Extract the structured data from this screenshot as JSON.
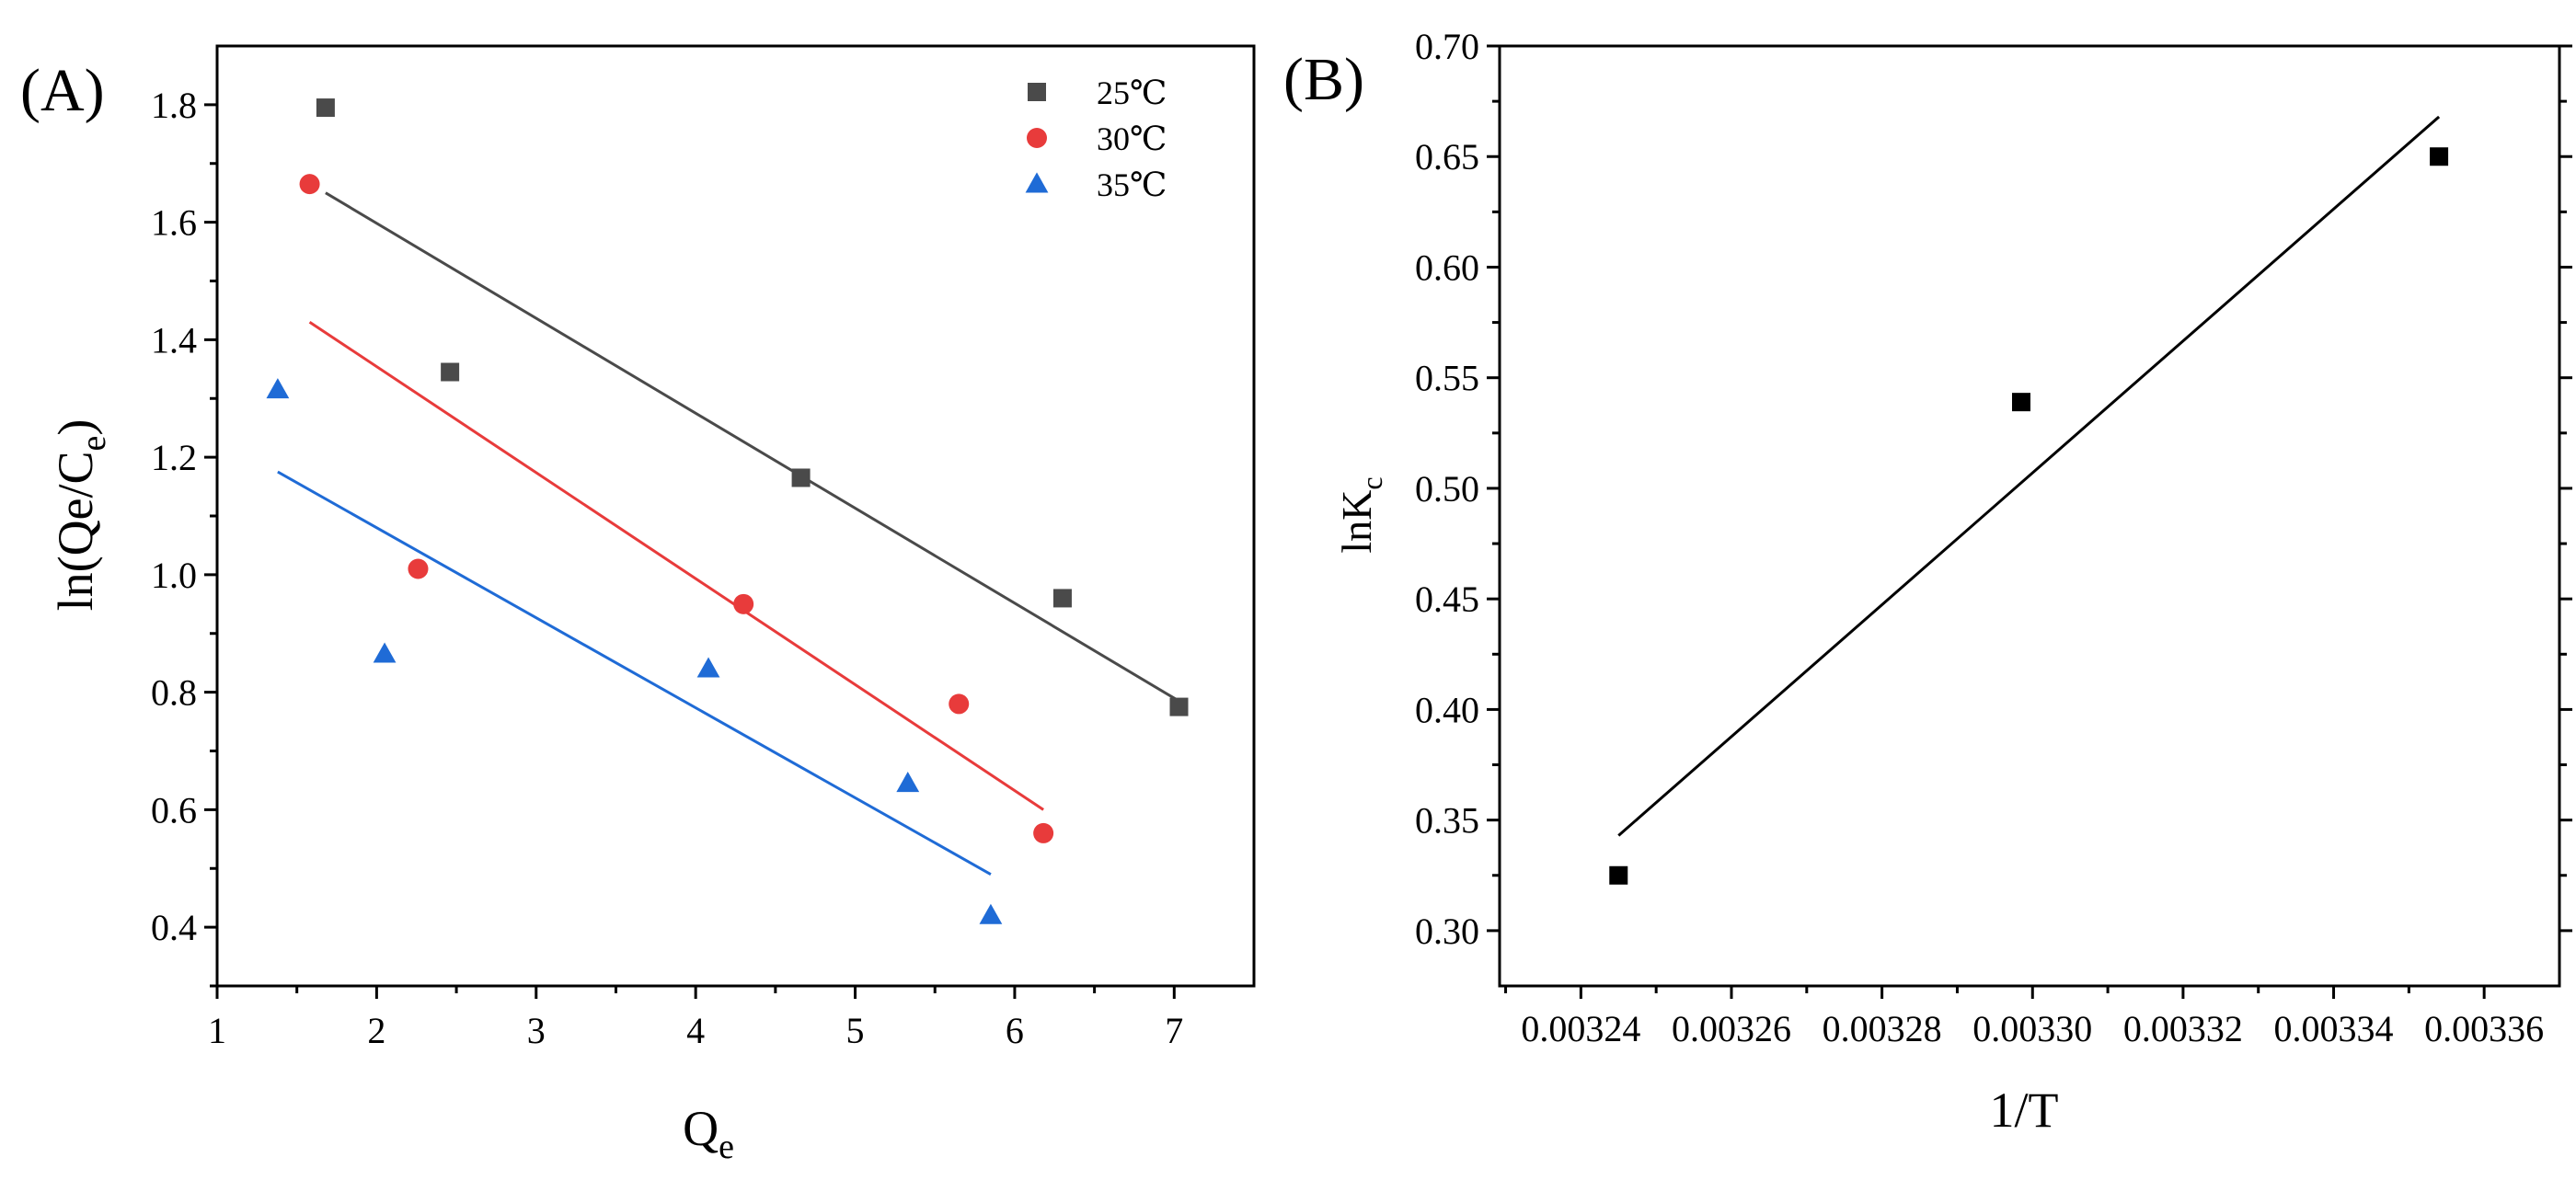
{
  "chart_data": [
    {
      "type": "scatter",
      "panel_label": "(A)",
      "title": "",
      "xlabel": "Q",
      "xlabel_sub": "e",
      "ylabel": "ln(Qe/C",
      "ylabel_sub": "e",
      "ylabel_close": ")",
      "xlim": [
        1,
        7.5
      ],
      "ylim": [
        0.3,
        1.9
      ],
      "x_ticks": [
        1,
        2,
        3,
        4,
        5,
        6,
        7
      ],
      "x_tick_labels": [
        "1",
        "2",
        "3",
        "4",
        "5",
        "6",
        "7"
      ],
      "y_ticks": [
        0.4,
        0.6,
        0.8,
        1.0,
        1.2,
        1.4,
        1.6,
        1.8
      ],
      "y_tick_labels": [
        "0.4",
        "0.6",
        "0.8",
        "1.0",
        "1.2",
        "1.4",
        "1.6",
        "1.8"
      ],
      "legend_position": "top-right",
      "series": [
        {
          "name": "25℃",
          "marker": "square",
          "color": "#4a4a4a",
          "line_color": "#4a4a4a",
          "x": [
            1.68,
            2.46,
            4.66,
            6.3,
            7.03
          ],
          "y": [
            1.795,
            1.345,
            1.165,
            0.96,
            0.775
          ],
          "fit": {
            "x": [
              1.68,
              7.03
            ],
            "y": [
              1.65,
              0.785
            ]
          }
        },
        {
          "name": "30℃",
          "marker": "circle",
          "color": "#e83b3b",
          "line_color": "#e83b3b",
          "x": [
            1.58,
            2.26,
            4.3,
            5.65,
            6.18
          ],
          "y": [
            1.665,
            1.01,
            0.95,
            0.78,
            0.56
          ],
          "fit": {
            "x": [
              1.58,
              6.18
            ],
            "y": [
              1.43,
              0.6
            ]
          }
        },
        {
          "name": "35℃",
          "marker": "triangle",
          "color": "#1f6bd6",
          "line_color": "#1f6bd6",
          "x": [
            1.38,
            2.05,
            4.08,
            5.33,
            5.85
          ],
          "y": [
            1.315,
            0.865,
            0.84,
            0.645,
            0.42
          ],
          "fit": {
            "x": [
              1.38,
              5.85
            ],
            "y": [
              1.175,
              0.49
            ]
          }
        }
      ]
    },
    {
      "type": "scatter",
      "panel_label": "(B)",
      "title": "",
      "xlabel": "1/T",
      "ylabel": "lnK",
      "ylabel_sub": "c",
      "xlim": [
        0.0032292,
        0.00337
      ],
      "ylim": [
        0.275,
        0.7
      ],
      "x_ticks": [
        0.00324,
        0.00326,
        0.00328,
        0.0033,
        0.00332,
        0.00334,
        0.00336
      ],
      "x_tick_labels": [
        "0.00324",
        "0.00326",
        "0.00328",
        "0.00330",
        "0.00332",
        "0.00334",
        "0.00336"
      ],
      "y_ticks": [
        0.3,
        0.35,
        0.4,
        0.45,
        0.5,
        0.55,
        0.6,
        0.65,
        0.7
      ],
      "y_tick_labels": [
        "0.30",
        "0.35",
        "0.40",
        "0.45",
        "0.50",
        "0.55",
        "0.60",
        "0.65",
        "0.70"
      ],
      "series": [
        {
          "name": "lnKc",
          "marker": "square",
          "color": "#000000",
          "line_color": "#000000",
          "x": [
            0.003245,
            0.0032985,
            0.003354
          ],
          "y": [
            0.325,
            0.539,
            0.65
          ],
          "fit": {
            "x": [
              0.003245,
              0.003354
            ],
            "y": [
              0.343,
              0.668
            ]
          }
        }
      ]
    }
  ]
}
